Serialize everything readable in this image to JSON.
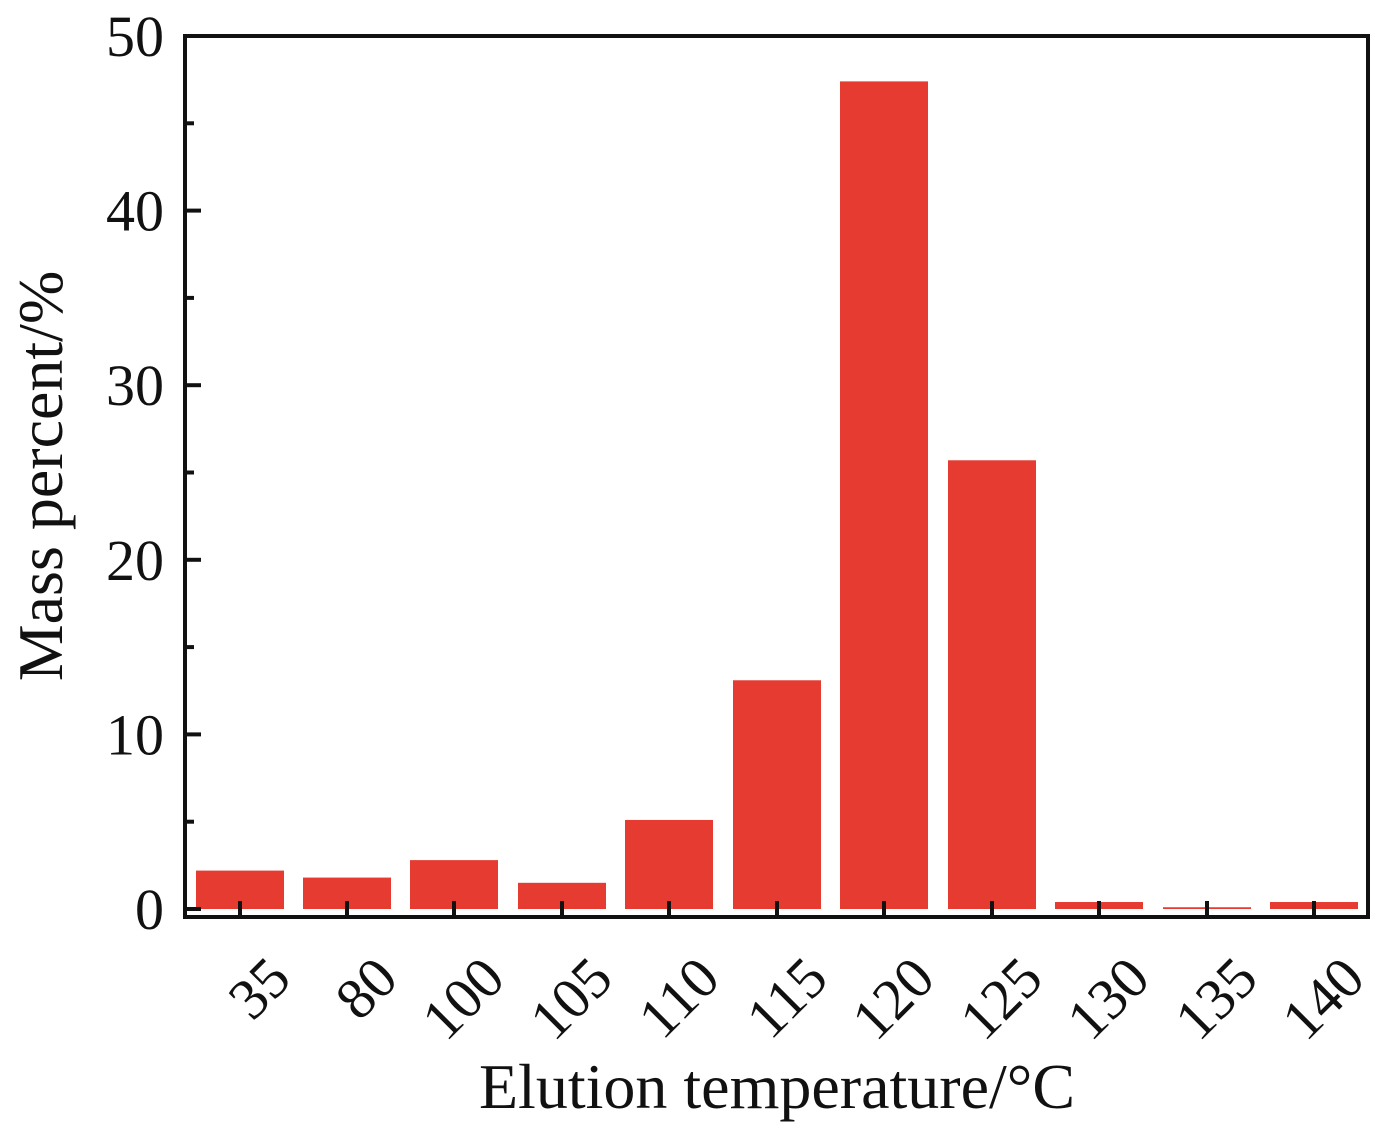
{
  "chart_data": {
    "type": "bar",
    "title": "",
    "xlabel": "Elution temperature/°C",
    "ylabel": "Mass percent/%",
    "categories": [
      "35",
      "80",
      "100",
      "105",
      "110",
      "115",
      "120",
      "125",
      "130",
      "135",
      "140"
    ],
    "values": [
      2.2,
      1.8,
      2.8,
      1.5,
      5.1,
      13.1,
      47.4,
      25.7,
      0.4,
      0.1,
      0.4
    ],
    "ylim": [
      0,
      50
    ],
    "yticks": [
      "0",
      "10",
      "20",
      "30",
      "40",
      "50"
    ],
    "grid": false,
    "legend": "none",
    "colors": {
      "bar": "#e53b31",
      "axis": "#111111",
      "text": "#111111"
    }
  }
}
